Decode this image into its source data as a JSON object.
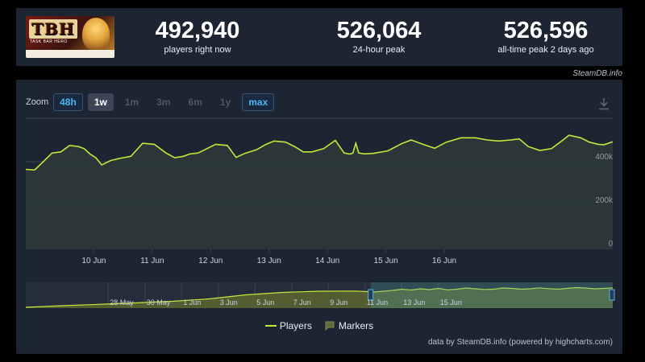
{
  "stats": [
    {
      "value": "492,940",
      "label": "players right now"
    },
    {
      "value": "526,064",
      "label": "24-hour peak"
    },
    {
      "value": "526,596",
      "label": "all-time peak 2 days ago"
    }
  ],
  "logo": {
    "title": "TBH",
    "subtitle": "TASK BAR HERO"
  },
  "credit_top": "SteamDB.info",
  "zoom": {
    "label": "Zoom",
    "buttons": [
      {
        "label": "48h",
        "style": "accent"
      },
      {
        "label": "1w",
        "style": "active"
      },
      {
        "label": "1m",
        "style": "disabled"
      },
      {
        "label": "3m",
        "style": "disabled"
      },
      {
        "label": "6m",
        "style": "disabled"
      },
      {
        "label": "1y",
        "style": "disabled"
      },
      {
        "label": "max",
        "style": "accent"
      }
    ]
  },
  "legend": {
    "players": "Players",
    "markers": "Markers"
  },
  "credit_bottom": "data by SteamDB.info (powered by highcharts.com)",
  "colors": {
    "line": "#c4e83a",
    "panel": "#1e2532",
    "grid": "#3a4352",
    "navigator_fill": "#4a5a3a"
  },
  "chart_data": [
    {
      "type": "line",
      "name": "main",
      "series": [
        {
          "name": "Players",
          "x_days": [
            0,
            0.15,
            0.3,
            0.45,
            0.6,
            0.75,
            0.9,
            1.0,
            1.1,
            1.2,
            1.3,
            1.45,
            1.6,
            1.8,
            2.0,
            2.2,
            2.4,
            2.55,
            2.7,
            2.8,
            2.95,
            3.1,
            3.25,
            3.45,
            3.6,
            3.75,
            3.95,
            4.1,
            4.25,
            4.45,
            4.6,
            4.75,
            4.9,
            5.1,
            5.3,
            5.45,
            5.55,
            5.6,
            5.65,
            5.7,
            5.8,
            5.95,
            6.2,
            6.45,
            6.6,
            6.8,
            7.0,
            7.2,
            7.45,
            7.7,
            7.9,
            8.1,
            8.3,
            8.45,
            8.6,
            8.8,
            9.0,
            9.15,
            9.3,
            9.5,
            9.65,
            9.8,
            9.9,
            10.05
          ],
          "values": [
            365,
            362,
            400,
            440,
            445,
            475,
            470,
            460,
            435,
            418,
            385,
            405,
            415,
            425,
            485,
            480,
            440,
            418,
            425,
            435,
            440,
            460,
            480,
            475,
            420,
            438,
            455,
            478,
            495,
            490,
            470,
            445,
            445,
            460,
            498,
            440,
            435,
            440,
            485,
            440,
            436,
            438,
            450,
            485,
            500,
            480,
            462,
            490,
            510,
            510,
            500,
            495,
            500,
            505,
            470,
            452,
            460,
            490,
            522,
            510,
            490,
            480,
            478,
            492
          ]
        }
      ],
      "x_labels": [
        "10 Jun",
        "11 Jun",
        "12 Jun",
        "13 Jun",
        "14 Jun",
        "15 Jun",
        "16 Jun"
      ],
      "x_label_days": [
        1,
        2,
        3,
        4,
        5,
        6,
        7
      ],
      "y_ticks": [
        0,
        200,
        400
      ],
      "y_tick_labels": [
        "0",
        "200k",
        "400k"
      ],
      "ylim": [
        0,
        600
      ]
    },
    {
      "type": "area",
      "name": "navigator",
      "series": [
        {
          "name": "Players",
          "x_days": [
            0,
            2,
            4,
            6,
            8,
            10,
            12,
            14,
            16,
            18,
            19,
            20,
            20.5,
            21,
            21.5,
            22,
            22.5,
            23,
            23.5,
            24,
            24.5,
            25,
            25.5,
            26,
            26.5,
            27,
            27.5,
            28,
            28.5,
            29,
            29.5,
            30,
            30.5,
            31,
            31.5,
            32
          ],
          "values": [
            20,
            60,
            95,
            130,
            170,
            230,
            330,
            390,
            420,
            425,
            400,
            440,
            470,
            450,
            480,
            460,
            490,
            455,
            470,
            500,
            480,
            465,
            470,
            500,
            490,
            470,
            480,
            505,
            485,
            470,
            490,
            510,
            500,
            480,
            490,
            505
          ]
        }
      ],
      "x_labels": [
        "28 May",
        "30 May",
        "1 Jun",
        "3 Jun",
        "5 Jun",
        "7 Jun",
        "9 Jun",
        "11 Jun",
        "13 Jun",
        "15 Jun"
      ],
      "x_label_days": [
        5.2,
        7.2,
        9.2,
        11.2,
        13.2,
        15.2,
        17.2,
        19.2,
        21.2,
        23.2
      ],
      "selected_range_days": [
        18.8,
        32
      ],
      "ylim": [
        0,
        600
      ]
    }
  ]
}
